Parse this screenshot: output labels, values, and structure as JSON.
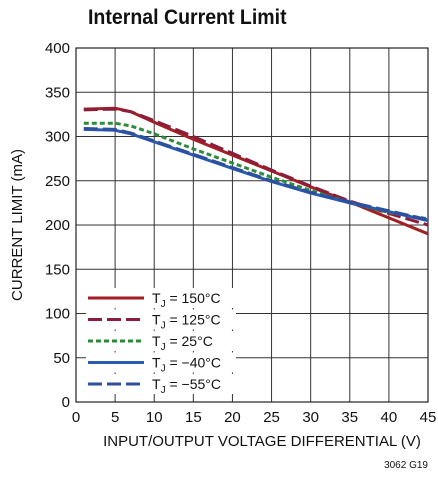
{
  "chart_data": {
    "type": "line",
    "title": "Internal Current Limit",
    "xlabel": "INPUT/OUTPUT VOLTAGE DIFFERENTIAL (V)",
    "ylabel": "CURRENT LIMIT (mA)",
    "xlim": [
      0,
      45
    ],
    "ylim": [
      0,
      400
    ],
    "xticks": [
      0,
      5,
      10,
      15,
      20,
      25,
      30,
      35,
      40,
      45
    ],
    "yticks": [
      0,
      50,
      100,
      150,
      200,
      250,
      300,
      350,
      400
    ],
    "grid": true,
    "legend_position": "lower-left",
    "series": [
      {
        "name": "150°C",
        "label_prefix": "T",
        "label_sub": "J",
        "color": "#a31f24",
        "dash": "solid",
        "x": [
          1,
          5,
          7,
          10,
          15,
          20,
          25,
          30,
          35,
          40,
          45
        ],
        "y": [
          331,
          332,
          328,
          316,
          297,
          279,
          261,
          243,
          226,
          208,
          190
        ]
      },
      {
        "name": "125°C",
        "label_prefix": "T",
        "label_sub": "J",
        "color": "#8c1d3a",
        "dash": "dashed",
        "x": [
          1,
          5,
          7,
          10,
          15,
          20,
          25,
          30,
          35,
          40,
          45
        ],
        "y": [
          330,
          331,
          328,
          318,
          300,
          281,
          262,
          244,
          227,
          213,
          200
        ]
      },
      {
        "name": "25°C",
        "label_prefix": "T",
        "label_sub": "J",
        "color": "#2e8b3a",
        "dash": "dotted",
        "x": [
          1,
          5,
          7,
          10,
          15,
          20,
          25,
          30,
          35,
          40,
          45
        ],
        "y": [
          315,
          315,
          312,
          303,
          286,
          270,
          254,
          239,
          225,
          214,
          207
        ]
      },
      {
        "name": "−40°C",
        "label_prefix": "T",
        "label_sub": "J",
        "color": "#2a5bb0",
        "dash": "solid",
        "x": [
          1,
          5,
          7,
          10,
          15,
          20,
          25,
          30,
          35,
          40,
          45
        ],
        "y": [
          308,
          307,
          303,
          294,
          279,
          264,
          249,
          236,
          225,
          215,
          205
        ]
      },
      {
        "name": "−55°C",
        "label_prefix": "T",
        "label_sub": "J",
        "color": "#2c4f9e",
        "dash": "dashed",
        "x": [
          1,
          5,
          7,
          10,
          15,
          20,
          25,
          30,
          35,
          40,
          45
        ],
        "y": [
          309,
          308,
          304,
          295,
          280,
          265,
          250,
          237,
          226,
          216,
          206
        ]
      }
    ]
  },
  "figure_id": "3062 G19"
}
